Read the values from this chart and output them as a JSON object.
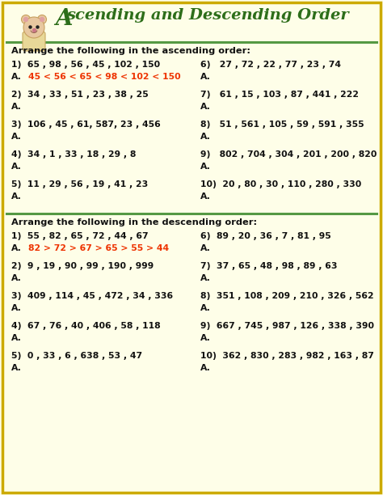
{
  "title_part1": "scending and Descending Order",
  "title_A": "A",
  "bg_color": "#fefee8",
  "border_color": "#ccaa00",
  "section1_header": "Arrange the following in the ascending order:",
  "section2_header": "Arrange the following in the descending order:",
  "divider_color": "#559944",
  "text_color": "#111111",
  "answer_color": "#ee3300",
  "title_color": "#2d6e1a",
  "asc_left": [
    "1)  65 , 98 , 56 , 45 , 102 , 150",
    "2)  34 , 33 , 51 , 23 , 38 , 25",
    "3)  106 , 45 , 61, 587, 23 , 456",
    "4)  34 , 1 , 33 , 18 , 29 , 8",
    "5)  11 , 29 , 56 , 19 , 41 , 23"
  ],
  "asc_left_ans_plain": [
    "A.",
    "A.",
    "A.",
    "A.",
    "A."
  ],
  "asc_left_ans_colored": [
    "45 < 56 < 65 < 98 < 102 < 150",
    "",
    "",
    "",
    ""
  ],
  "asc_right": [
    "6)   27 , 72 , 22 , 77 , 23 , 74",
    "7)   61 , 15 , 103 , 87 , 441 , 222",
    "8)   51 , 561 , 105 , 59 , 591 , 355",
    "9)   802 , 704 , 304 , 201 , 200 , 820",
    "10)  20 , 80 , 30 , 110 , 280 , 330"
  ],
  "asc_right_ans_plain": [
    "A.",
    "A.",
    "A.",
    "A.",
    "A."
  ],
  "asc_right_ans_colored": [
    "",
    "",
    "",
    "",
    ""
  ],
  "desc_left": [
    "1)  55 , 82 , 65 , 72 , 44 , 67",
    "2)  9 , 19 , 90 , 99 , 190 , 999",
    "3)  409 , 114 , 45 , 472 , 34 , 336",
    "4)  67 , 76 , 40 , 406 , 58 , 118",
    "5)  0 , 33 , 6 , 638 , 53 , 47"
  ],
  "desc_left_ans_plain": [
    "A.",
    "A.",
    "A.",
    "A.",
    "A."
  ],
  "desc_left_ans_colored": [
    "82 > 72 > 67 > 65 > 55 > 44",
    "",
    "",
    "",
    ""
  ],
  "desc_right": [
    "6)  89 , 20 , 36 , 7 , 81 , 95",
    "7)  37 , 65 , 48 , 98 , 89 , 63",
    "8)  351 , 108 , 209 , 210 , 326 , 562",
    "9)  667 , 745 , 987 , 126 , 338 , 390",
    "10)  362 , 830 , 283 , 982 , 163 , 87"
  ],
  "desc_right_ans_plain": [
    "A.",
    "A.",
    "A.",
    "A.",
    "A."
  ],
  "desc_right_ans_colored": [
    "",
    "",
    "",
    "",
    ""
  ],
  "figw": 4.74,
  "figh": 6.12,
  "dpi": 100
}
